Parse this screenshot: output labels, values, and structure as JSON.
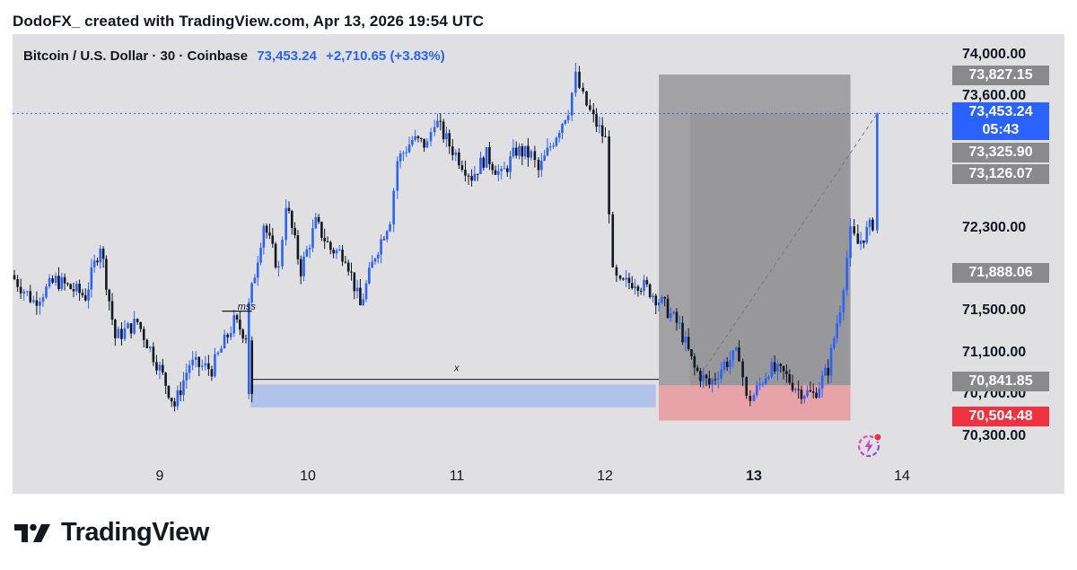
{
  "header": {
    "text": "DodoFX_ created with TradingView.com, Apr 13, 2026 19:54 UTC"
  },
  "legend": {
    "symbol": "Bitcoin / U.S. Dollar · 30 · Coinbase",
    "price": "73,453.24",
    "change": "+2,710.65 (+3.83%)"
  },
  "axis": {
    "price_labels": [
      "74,000.00",
      "73,600.00",
      "72,300.00",
      "71,500.00",
      "71,100.00",
      "70,700.00",
      "70,300.00"
    ],
    "time_labels": [
      "9",
      "10",
      "11",
      "12",
      "13",
      "14"
    ]
  },
  "tags": {
    "t1": "73,827.15",
    "current_price": "73,453.24",
    "countdown": "05:43",
    "t3": "73,325.90",
    "t4": "73,126.07",
    "t5": "71,888.06",
    "t6": "70,841.85",
    "t7": "70,504.48"
  },
  "annotations": {
    "mss": "mss",
    "x": "x"
  },
  "logo": {
    "text": "TradingView"
  },
  "colors": {
    "up": "#2962ff",
    "down": "#131722",
    "background": "#e0e0e2",
    "target_zone": "#9e9ea0",
    "stop_zone": "#e8a3a8",
    "demand_zone": "#adc0ec",
    "stop_tag": "#f0313f",
    "current_tag": "#2962ff"
  },
  "chart_data": {
    "type": "candlestick",
    "title": "Bitcoin / U.S. Dollar · 30 · Coinbase",
    "xlabel": "",
    "ylabel": "",
    "interval": "30",
    "x_ticks": [
      "9",
      "10",
      "11",
      "12",
      "13",
      "14"
    ],
    "y_ticks": [
      74000,
      73600,
      72300,
      71500,
      71100,
      70700,
      70300
    ],
    "ylim": [
      70000,
      74100
    ],
    "last_price": 73453.24,
    "change": 2710.65,
    "change_pct": 3.83,
    "price_path_day": [
      [
        8.0,
        71900
      ],
      [
        8.15,
        71650
      ],
      [
        8.3,
        71850
      ],
      [
        8.5,
        71700
      ],
      [
        8.6,
        72200
      ],
      [
        8.7,
        71300
      ],
      [
        8.85,
        71450
      ],
      [
        9.0,
        71000
      ],
      [
        9.1,
        70650
      ],
      [
        9.2,
        71050
      ],
      [
        9.35,
        71000
      ],
      [
        9.5,
        71450
      ],
      [
        9.6,
        71300
      ],
      [
        9.58,
        70700
      ],
      [
        9.6,
        71600
      ],
      [
        9.7,
        72400
      ],
      [
        9.8,
        71950
      ],
      [
        9.85,
        72600
      ],
      [
        9.95,
        71950
      ],
      [
        10.05,
        72400
      ],
      [
        10.15,
        72150
      ],
      [
        10.25,
        72100
      ],
      [
        10.35,
        71600
      ],
      [
        10.45,
        72100
      ],
      [
        10.55,
        72450
      ],
      [
        10.6,
        73000
      ],
      [
        10.7,
        73200
      ],
      [
        10.8,
        73150
      ],
      [
        10.85,
        73400
      ],
      [
        10.95,
        73150
      ],
      [
        11.1,
        72850
      ],
      [
        11.2,
        73050
      ],
      [
        11.3,
        72850
      ],
      [
        11.4,
        73100
      ],
      [
        11.5,
        73050
      ],
      [
        11.55,
        72900
      ],
      [
        11.65,
        73200
      ],
      [
        11.75,
        73500
      ],
      [
        11.8,
        73800
      ],
      [
        11.85,
        73600
      ],
      [
        11.92,
        73400
      ],
      [
        12.0,
        73200
      ],
      [
        12.05,
        71900
      ],
      [
        12.1,
        71800
      ],
      [
        12.2,
        71850
      ],
      [
        12.3,
        71750
      ],
      [
        12.4,
        71600
      ],
      [
        12.5,
        71400
      ],
      [
        12.6,
        71000
      ],
      [
        12.7,
        70850
      ],
      [
        12.8,
        71050
      ],
      [
        12.9,
        71150
      ],
      [
        12.95,
        70700
      ],
      [
        13.0,
        70750
      ],
      [
        13.1,
        71000
      ],
      [
        13.2,
        70950
      ],
      [
        13.3,
        70800
      ],
      [
        13.4,
        70750
      ],
      [
        13.5,
        71000
      ],
      [
        13.58,
        71600
      ],
      [
        13.65,
        72300
      ],
      [
        13.7,
        72200
      ],
      [
        13.8,
        72400
      ],
      [
        13.83,
        73453
      ]
    ],
    "levels": [
      {
        "price": 73827.15
      },
      {
        "price": 73453.24
      },
      {
        "price": 73325.9
      },
      {
        "price": 73126.07
      },
      {
        "price": 71888.06
      },
      {
        "price": 70841.85
      },
      {
        "price": 70504.48
      }
    ],
    "zones": [
      {
        "kind": "target",
        "from_day": 12.36,
        "to_day": 13.65,
        "low": 70841.85,
        "high": 73827.15
      },
      {
        "kind": "inner",
        "from_day": 12.57,
        "to_day": 13.65,
        "low": 70841.85,
        "high": 73453.24
      },
      {
        "kind": "stop",
        "from_day": 12.36,
        "to_day": 13.65,
        "low": 70504.48,
        "high": 70841.85
      },
      {
        "kind": "demand",
        "from_day": 9.61,
        "to_day": 12.34,
        "low": 70630,
        "high": 70850
      }
    ],
    "annotations": [
      {
        "text": "mss",
        "day": 9.5,
        "price": 71620
      },
      {
        "text": "x",
        "day": 11.0,
        "price": 70960
      }
    ]
  }
}
